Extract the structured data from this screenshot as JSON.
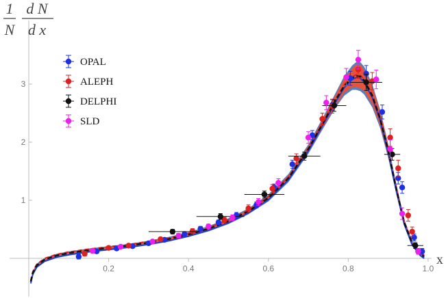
{
  "chart_data": {
    "type": "scatter",
    "x_axis": {
      "title": "x",
      "range": [
        0.0,
        1.0
      ],
      "ticks": [
        {
          "value": 0.2,
          "label": "0.2"
        },
        {
          "value": 0.4,
          "label": "0.4"
        },
        {
          "value": 0.6,
          "label": "0.6"
        },
        {
          "value": 0.8,
          "label": "0.8"
        },
        {
          "value": 1.0,
          "label": "1.0"
        }
      ]
    },
    "y_axis": {
      "title_numerator": "1",
      "title_denominator": "N",
      "title_fraction_numerator": "d N",
      "title_fraction_denominator": "d x",
      "range": [
        -0.7,
        3.6
      ],
      "ticks": [
        {
          "value": 1,
          "label": "1"
        },
        {
          "value": 2,
          "label": "2"
        },
        {
          "value": 3,
          "label": "3"
        }
      ]
    },
    "grid": false,
    "legend_position": "top-left",
    "band": {
      "color_outer": "#5b7fb8",
      "color_inner": "#e8513a",
      "x": [
        0.005,
        0.01,
        0.02,
        0.04,
        0.07,
        0.1,
        0.15,
        0.2,
        0.25,
        0.3,
        0.35,
        0.4,
        0.45,
        0.5,
        0.55,
        0.6,
        0.65,
        0.7,
        0.74,
        0.77,
        0.79,
        0.81,
        0.82,
        0.83,
        0.84,
        0.86,
        0.88,
        0.9,
        0.92,
        0.94,
        0.96,
        0.98,
        0.99
      ],
      "center": [
        -0.4,
        -0.25,
        -0.12,
        -0.02,
        0.05,
        0.09,
        0.14,
        0.18,
        0.22,
        0.27,
        0.33,
        0.41,
        0.51,
        0.64,
        0.81,
        1.04,
        1.38,
        1.88,
        2.37,
        2.74,
        2.97,
        3.11,
        3.14,
        3.13,
        3.06,
        2.8,
        2.4,
        1.85,
        1.2,
        0.62,
        0.26,
        0.08,
        0.03
      ],
      "outer_halfwidth": [
        0.03,
        0.03,
        0.03,
        0.03,
        0.03,
        0.03,
        0.03,
        0.03,
        0.03,
        0.035,
        0.04,
        0.04,
        0.045,
        0.05,
        0.05,
        0.06,
        0.07,
        0.08,
        0.1,
        0.13,
        0.17,
        0.21,
        0.24,
        0.25,
        0.24,
        0.2,
        0.16,
        0.12,
        0.09,
        0.06,
        0.04,
        0.03,
        0.03
      ],
      "inner_halfwidth": [
        0.015,
        0.015,
        0.015,
        0.015,
        0.015,
        0.015,
        0.015,
        0.015,
        0.015,
        0.018,
        0.02,
        0.02,
        0.022,
        0.025,
        0.03,
        0.035,
        0.04,
        0.05,
        0.07,
        0.09,
        0.12,
        0.16,
        0.19,
        0.2,
        0.18,
        0.15,
        0.12,
        0.09,
        0.06,
        0.04,
        0.025,
        0.02,
        0.02
      ]
    },
    "curves": [
      {
        "style": "dashed-black",
        "color": "#111111"
      },
      {
        "style": "dashed-red",
        "color": "#e0201e"
      },
      {
        "style": "solid-blue",
        "color": "#1f3fd0"
      }
    ],
    "series": [
      {
        "name": "OPAL",
        "color": "#1e2fe6",
        "points": [
          {
            "x": 0.125,
            "y": 0.03,
            "ey": 0.04
          },
          {
            "x": 0.17,
            "y": 0.12,
            "ey": 0.03
          },
          {
            "x": 0.22,
            "y": 0.17,
            "ey": 0.03
          },
          {
            "x": 0.26,
            "y": 0.21,
            "ey": 0.03
          },
          {
            "x": 0.3,
            "y": 0.26,
            "ey": 0.03
          },
          {
            "x": 0.34,
            "y": 0.32,
            "ey": 0.03
          },
          {
            "x": 0.39,
            "y": 0.42,
            "ey": 0.03
          },
          {
            "x": 0.43,
            "y": 0.51,
            "ey": 0.04
          },
          {
            "x": 0.475,
            "y": 0.62,
            "ey": 0.04
          },
          {
            "x": 0.52,
            "y": 0.74,
            "ey": 0.05
          },
          {
            "x": 0.57,
            "y": 0.92,
            "ey": 0.05
          },
          {
            "x": 0.615,
            "y": 1.22,
            "ey": 0.06
          },
          {
            "x": 0.66,
            "y": 1.62,
            "ey": 0.07
          },
          {
            "x": 0.71,
            "y": 2.12,
            "ey": 0.08
          },
          {
            "x": 0.76,
            "y": 2.64,
            "ey": 0.09
          },
          {
            "x": 0.805,
            "y": 3.1,
            "ey": 0.12
          },
          {
            "x": 0.845,
            "y": 3.18,
            "ey": 0.14
          },
          {
            "x": 0.885,
            "y": 2.52,
            "ey": 0.12
          },
          {
            "x": 0.925,
            "y": 1.38,
            "ey": 0.1
          },
          {
            "x": 0.935,
            "y": 1.22,
            "ey": 0.1
          },
          {
            "x": 0.965,
            "y": 0.36,
            "ey": 0.06
          },
          {
            "x": 0.985,
            "y": 0.12,
            "ey": 0.05
          }
        ]
      },
      {
        "name": "ALEPH",
        "color": "#e02020",
        "points": [
          {
            "x": 0.14,
            "y": 0.08,
            "ey": 0.04
          },
          {
            "x": 0.2,
            "y": 0.18,
            "ey": 0.03
          },
          {
            "x": 0.25,
            "y": 0.22,
            "ey": 0.03
          },
          {
            "x": 0.33,
            "y": 0.33,
            "ey": 0.03
          },
          {
            "x": 0.41,
            "y": 0.47,
            "ey": 0.04
          },
          {
            "x": 0.49,
            "y": 0.66,
            "ey": 0.05
          },
          {
            "x": 0.55,
            "y": 0.86,
            "ey": 0.06
          },
          {
            "x": 0.61,
            "y": 1.2,
            "ey": 0.07
          },
          {
            "x": 0.67,
            "y": 1.72,
            "ey": 0.08
          },
          {
            "x": 0.735,
            "y": 2.4,
            "ey": 0.1
          },
          {
            "x": 0.76,
            "y": 2.62,
            "ey": 0.12
          },
          {
            "x": 0.825,
            "y": 3.25,
            "ey": 0.15
          },
          {
            "x": 0.86,
            "y": 3.05,
            "ey": 0.15
          },
          {
            "x": 0.905,
            "y": 2.08,
            "ey": 0.15
          },
          {
            "x": 0.925,
            "y": 1.55,
            "ey": 0.14
          },
          {
            "x": 0.95,
            "y": 0.74,
            "ey": 0.1
          },
          {
            "x": 0.96,
            "y": 0.46,
            "ey": 0.08
          },
          {
            "x": 0.975,
            "y": 0.12,
            "ey": 0.05
          }
        ]
      },
      {
        "name": "DELPHI",
        "color": "#111111",
        "points": [
          {
            "x": 0.36,
            "y": 0.46,
            "ex": 0.06,
            "ey": 0.04
          },
          {
            "x": 0.48,
            "y": 0.72,
            "ex": 0.06,
            "ey": 0.05
          },
          {
            "x": 0.59,
            "y": 1.1,
            "ex": 0.05,
            "ey": 0.06
          },
          {
            "x": 0.69,
            "y": 1.76,
            "ex": 0.04,
            "ey": 0.07
          },
          {
            "x": 0.765,
            "y": 2.63,
            "ex": 0.03,
            "ey": 0.1
          },
          {
            "x": 0.845,
            "y": 3.03,
            "ex": 0.04,
            "ey": 0.14
          },
          {
            "x": 0.91,
            "y": 1.79,
            "ex": 0.02,
            "ey": 0.1
          },
          {
            "x": 0.968,
            "y": 0.22,
            "ex": 0.02,
            "ey": 0.05
          }
        ]
      },
      {
        "name": "SLD",
        "color": "#ee1eee",
        "points": [
          {
            "x": 0.16,
            "y": 0.13,
            "ey": 0.04
          },
          {
            "x": 0.23,
            "y": 0.2,
            "ey": 0.03
          },
          {
            "x": 0.31,
            "y": 0.29,
            "ey": 0.03
          },
          {
            "x": 0.375,
            "y": 0.39,
            "ey": 0.04
          },
          {
            "x": 0.45,
            "y": 0.55,
            "ey": 0.04
          },
          {
            "x": 0.51,
            "y": 0.7,
            "ey": 0.05
          },
          {
            "x": 0.575,
            "y": 0.97,
            "ey": 0.06
          },
          {
            "x": 0.625,
            "y": 1.3,
            "ey": 0.07
          },
          {
            "x": 0.7,
            "y": 2.08,
            "ey": 0.1
          },
          {
            "x": 0.745,
            "y": 2.68,
            "ey": 0.12
          },
          {
            "x": 0.795,
            "y": 3.12,
            "ey": 0.15
          },
          {
            "x": 0.825,
            "y": 3.42,
            "ey": 0.16
          },
          {
            "x": 0.87,
            "y": 3.08,
            "ey": 0.16
          },
          {
            "x": 0.905,
            "y": 1.88,
            "ey": 0.16
          },
          {
            "x": 0.935,
            "y": 0.77,
            "ey": 0.1
          },
          {
            "x": 0.975,
            "y": 0.12,
            "ey": 0.05
          }
        ]
      }
    ]
  }
}
